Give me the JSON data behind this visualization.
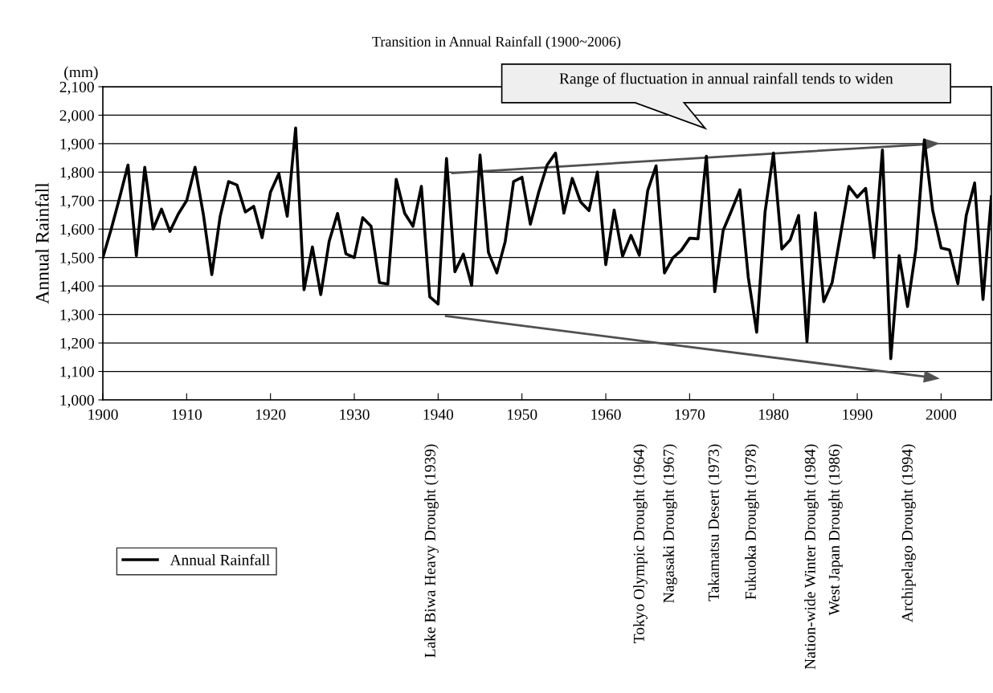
{
  "chart_data": {
    "type": "line",
    "title": "Transition in Annual Rainfall (1900~2006)",
    "ylabel": "Annual Rainfall",
    "x": [
      1900,
      1901,
      1902,
      1903,
      1904,
      1905,
      1906,
      1907,
      1908,
      1909,
      1910,
      1911,
      1912,
      1913,
      1914,
      1915,
      1916,
      1917,
      1918,
      1919,
      1920,
      1921,
      1922,
      1923,
      1924,
      1925,
      1926,
      1927,
      1928,
      1929,
      1930,
      1931,
      1932,
      1933,
      1934,
      1935,
      1936,
      1937,
      1938,
      1939,
      1940,
      1941,
      1942,
      1943,
      1944,
      1945,
      1946,
      1947,
      1948,
      1949,
      1950,
      1951,
      1952,
      1953,
      1954,
      1955,
      1956,
      1957,
      1958,
      1959,
      1960,
      1961,
      1962,
      1963,
      1964,
      1965,
      1966,
      1967,
      1968,
      1969,
      1970,
      1971,
      1972,
      1973,
      1974,
      1975,
      1976,
      1977,
      1978,
      1979,
      1980,
      1981,
      1982,
      1983,
      1984,
      1985,
      1986,
      1987,
      1988,
      1989,
      1990,
      1991,
      1992,
      1993,
      1994,
      1995,
      1996,
      1997,
      1998,
      1999,
      2000,
      2001,
      2002,
      2003,
      2004,
      2005,
      2006
    ],
    "series": [
      {
        "name": "Annual Rainfall",
        "color": "#000000",
        "values": [
          1500,
          1600,
          1710,
          1825,
          1507,
          1817,
          1600,
          1670,
          1592,
          1653,
          1700,
          1817,
          1650,
          1440,
          1645,
          1767,
          1755,
          1660,
          1680,
          1570,
          1730,
          1795,
          1645,
          1955,
          1387,
          1537,
          1370,
          1557,
          1655,
          1513,
          1500,
          1640,
          1610,
          1412,
          1407,
          1775,
          1656,
          1610,
          1750,
          1362,
          1337,
          1848,
          1450,
          1512,
          1402,
          1860,
          1518,
          1446,
          1556,
          1767,
          1782,
          1617,
          1730,
          1825,
          1867,
          1656,
          1778,
          1695,
          1665,
          1800,
          1475,
          1667,
          1505,
          1578,
          1508,
          1735,
          1822,
          1446,
          1499,
          1525,
          1568,
          1566,
          1856,
          1380,
          1595,
          1665,
          1738,
          1430,
          1238,
          1660,
          1867,
          1530,
          1562,
          1648,
          1205,
          1657,
          1345,
          1412,
          1580,
          1750,
          1712,
          1743,
          1500,
          1878,
          1145,
          1507,
          1328,
          1530,
          1913,
          1665,
          1534,
          1527,
          1408,
          1648,
          1762,
          1353,
          1714
        ]
      }
    ],
    "xlim": [
      1900,
      2006
    ],
    "xticks": [
      1900,
      1910,
      1920,
      1930,
      1940,
      1950,
      1960,
      1970,
      1980,
      1990,
      2000
    ],
    "ylim": [
      1000,
      2100
    ],
    "yticks": [
      {
        "value": 1000,
        "label": "1,000"
      },
      {
        "value": 1100,
        "label": "1,100"
      },
      {
        "value": 1200,
        "label": "1,200"
      },
      {
        "value": 1300,
        "label": "1,300"
      },
      {
        "value": 1400,
        "label": "1,400"
      },
      {
        "value": 1500,
        "label": "1,500"
      },
      {
        "value": 1600,
        "label": "1,600"
      },
      {
        "value": 1700,
        "label": "1,700"
      },
      {
        "value": 1800,
        "label": "1,800"
      },
      {
        "value": 1900,
        "label": "1,900"
      },
      {
        "value": 2000,
        "label": "2,000"
      },
      {
        "value": 2100,
        "label": "2,100"
      }
    ],
    "grid": "y",
    "legend": "bottom left",
    "marker": "none",
    "line_style": "solid",
    "annotations": [
      "(mm)",
      "Range of fluctuation in annual rainfall tends to widen",
      "Lake Biwa Heavy Drought (1939)",
      "Tokyo Olympic Drought (1964)",
      "Nagasaki Drought (1967)",
      "Takamatsu Desert (1973)",
      "Fukuoka Drought (1978)",
      "Nation-wide Winter Drought (1984)",
      "West Japan Drought (1986)",
      "Archipelago Drought (1994)"
    ]
  }
}
